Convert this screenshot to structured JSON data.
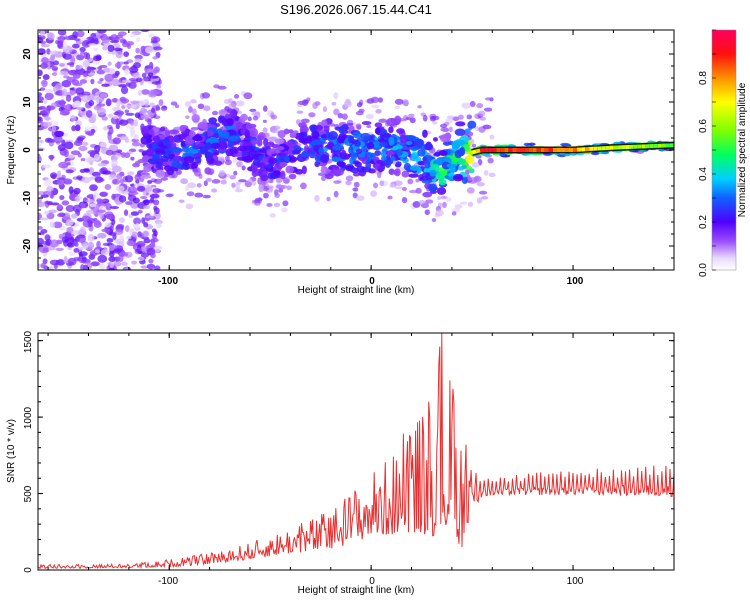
{
  "title": "S196.2026.067.15.44.C41",
  "chart_data": [
    {
      "type": "heatmap",
      "title": "S196.2026.067.15.44.C41",
      "xlabel": "Height of straight line (km)",
      "ylabel": "Frequency (Hz)",
      "xlim": [
        -165,
        150
      ],
      "ylim": [
        -25,
        25
      ],
      "x_ticks": [
        "-100",
        "0",
        "100"
      ],
      "y_ticks": [
        "-20",
        "-10",
        "0",
        "10",
        "20"
      ],
      "colorbar": {
        "label": "Normalized spectral amplitude",
        "range": [
          0,
          1
        ],
        "ticks": [
          "0.0",
          "0.2",
          "0.4",
          "0.6",
          "0.8"
        ]
      },
      "ridge": {
        "x": [
          -110,
          -90,
          -70,
          -50,
          -30,
          -10,
          10,
          25,
          35,
          45,
          55,
          80,
          100,
          120,
          150
        ],
        "freq": [
          0,
          -1,
          4,
          -3,
          1,
          0,
          1,
          -2,
          -5,
          -1,
          0,
          0,
          0,
          0.5,
          1
        ],
        "peak_amplitude": [
          0.25,
          0.3,
          0.3,
          0.25,
          0.3,
          0.35,
          0.35,
          0.4,
          0.5,
          0.55,
          0.95,
          0.95,
          0.85,
          0.7,
          0.6
        ]
      }
    },
    {
      "type": "line",
      "xlabel": "Height of straight line (km)",
      "ylabel": "SNR (10 * v/v)",
      "xlim": [
        -165,
        150
      ],
      "ylim": [
        0,
        1550
      ],
      "x_ticks": [
        "-100",
        "0",
        "100"
      ],
      "y_ticks": [
        "0",
        "500",
        "1000",
        "1500"
      ],
      "color": "#e83030",
      "envelope": {
        "x": [
          -165,
          -120,
          -100,
          -80,
          -60,
          -40,
          -20,
          0,
          10,
          20,
          30,
          35,
          40,
          45,
          50,
          55,
          60,
          80,
          100,
          150
        ],
        "low": [
          10,
          15,
          20,
          40,
          70,
          110,
          130,
          220,
          230,
          250,
          220,
          250,
          200,
          150,
          350,
          480,
          480,
          490,
          490,
          480
        ],
        "high": [
          35,
          40,
          70,
          110,
          180,
          280,
          400,
          650,
          750,
          1000,
          1150,
          1550,
          1250,
          900,
          720,
          650,
          620,
          640,
          660,
          700
        ]
      }
    }
  ]
}
